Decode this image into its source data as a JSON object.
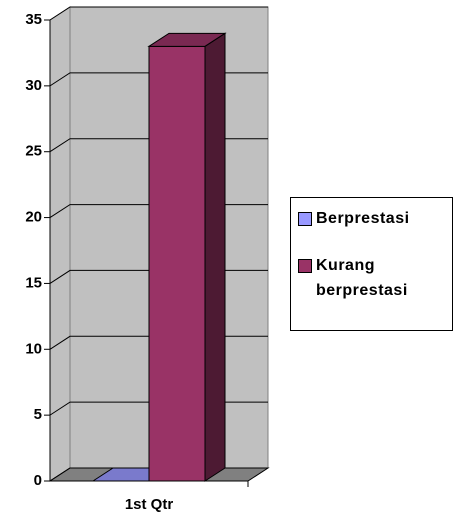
{
  "chart_data": {
    "type": "bar3d",
    "categories": [
      "1st Qtr"
    ],
    "series": [
      {
        "name": "Berprestasi",
        "color": "#9999ff",
        "values": [
          0
        ]
      },
      {
        "name": "Kurang berprestasi",
        "color": "#993366",
        "values": [
          33
        ]
      }
    ],
    "ylim": [
      0,
      35
    ],
    "yticks": [
      0,
      5,
      10,
      15,
      20,
      25,
      30,
      35
    ],
    "grid": true,
    "legend": "right"
  }
}
